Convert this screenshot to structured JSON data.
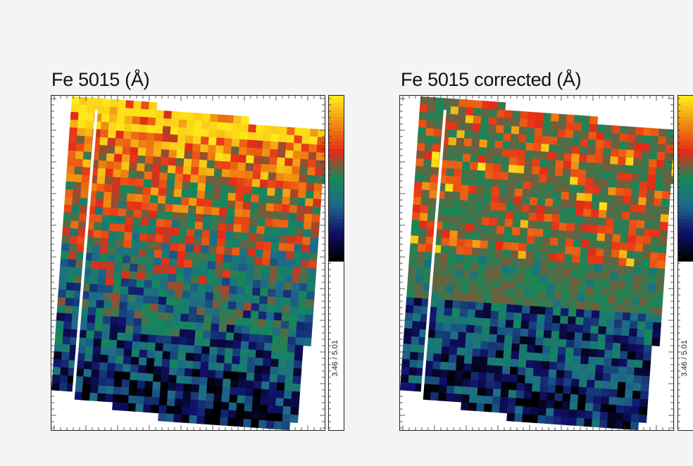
{
  "panels": [
    {
      "title": "Fe 5015 (Å)",
      "colorbar_range_label": "3.46 / 5.01"
    },
    {
      "title": "Fe 5015 corrected (Å)",
      "colorbar_range_label": "3.46 / 5.01"
    }
  ],
  "chart_data": [
    {
      "type": "heatmap",
      "title": "Fe 5015 (Å)",
      "colormap": [
        "#000000",
        "#10106a",
        "#1e6a8a",
        "#15885a",
        "#e52a18",
        "#f08a10",
        "#ffe81a"
      ],
      "colorbar_label": "3.46 / 5.01",
      "vmin": 3.46,
      "vmax": 5.01,
      "pattern": "high values (red/yellow) in upper region, decreasing to low values (blue) in lower region"
    },
    {
      "type": "heatmap",
      "title": "Fe 5015 corrected (Å)",
      "colormap": [
        "#000000",
        "#10106a",
        "#1e6a8a",
        "#15885a",
        "#e52a18",
        "#f08a10",
        "#ffe81a"
      ],
      "colorbar_label": "3.46 / 5.01",
      "vmin": 3.46,
      "vmax": 5.01,
      "pattern": "mostly mid values (green) with scattered red cells in the upper region, blue in lower region"
    }
  ]
}
